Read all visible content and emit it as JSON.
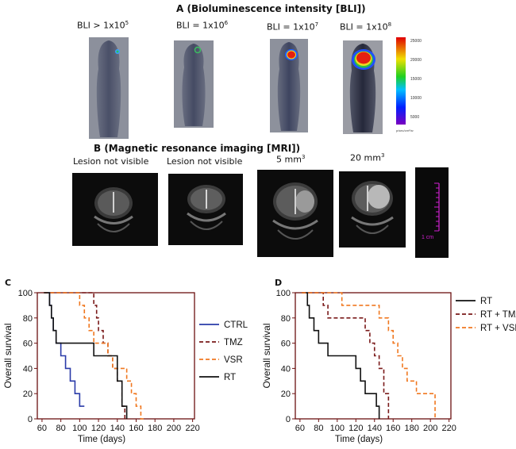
{
  "panel_a": {
    "title": "A (Bioluminescence intensity [BLI])",
    "labels": [
      {
        "prefix": "BLI > 1x10",
        "exp": "5"
      },
      {
        "prefix": "BLI = 1x10",
        "exp": "6"
      },
      {
        "prefix": "BLI = 1x10",
        "exp": "7"
      },
      {
        "prefix": "BLI = 1x10",
        "exp": "8"
      }
    ],
    "colorbar_ticks": [
      "25000",
      "20000",
      "15000",
      "10000",
      "5000"
    ],
    "colorbar_unit": "p/sec/cm²/sr"
  },
  "panel_b": {
    "title": "B (Magnetic resonance imaging [MRI])",
    "labels": [
      {
        "text": "Lesion not visible",
        "exp": ""
      },
      {
        "text": "Lesion not visible",
        "exp": ""
      },
      {
        "text": "5 mm",
        "exp": "3"
      },
      {
        "text": "20 mm",
        "exp": "3"
      }
    ],
    "scale_label": "1 cm"
  },
  "chart_data": [
    {
      "panel": "C",
      "type": "line",
      "ylabel": "Overall survival",
      "xlabel": "Time  (days)",
      "xticks": [
        "60",
        "80",
        "100",
        "120",
        "140",
        "160",
        "180",
        "200",
        "220"
      ],
      "yticks": [
        "100",
        "80",
        "60",
        "40",
        "20",
        "0"
      ],
      "xlim": [
        55,
        222
      ],
      "ylim": [
        0,
        100
      ],
      "series": [
        {
          "name": "CTRL",
          "color": "#2a3ba8",
          "dash": "solid",
          "x": [
            62,
            68,
            70,
            72,
            75,
            80,
            85,
            90,
            95,
            100,
            105
          ],
          "y": [
            100,
            90,
            80,
            70,
            60,
            50,
            40,
            30,
            20,
            10,
            10
          ]
        },
        {
          "name": "TMZ",
          "color": "#7a1a1a",
          "dash": "dash",
          "x": [
            62,
            110,
            115,
            118,
            120,
            125,
            130,
            135,
            140,
            145,
            148
          ],
          "y": [
            100,
            100,
            90,
            80,
            70,
            60,
            50,
            40,
            30,
            10,
            0
          ]
        },
        {
          "name": "VSR",
          "color": "#f07820",
          "dash": "dash",
          "x": [
            62,
            95,
            100,
            105,
            110,
            115,
            125,
            130,
            135,
            140,
            150,
            155,
            160,
            165,
            168
          ],
          "y": [
            100,
            100,
            90,
            80,
            70,
            60,
            60,
            50,
            40,
            40,
            30,
            20,
            10,
            0,
            0
          ]
        },
        {
          "name": "RT",
          "color": "#111111",
          "dash": "solid",
          "x": [
            62,
            68,
            70,
            72,
            75,
            95,
            115,
            130,
            140,
            145,
            150
          ],
          "y": [
            100,
            90,
            80,
            70,
            60,
            60,
            50,
            50,
            30,
            10,
            0
          ]
        }
      ]
    },
    {
      "panel": "D",
      "type": "line",
      "ylabel": "Overall survival",
      "xlabel": "Time  (days)",
      "xticks": [
        "60",
        "80",
        "100",
        "120",
        "140",
        "160",
        "180",
        "200",
        "220"
      ],
      "yticks": [
        "100",
        "80",
        "60",
        "40",
        "20",
        "0"
      ],
      "xlim": [
        55,
        222
      ],
      "ylim": [
        0,
        100
      ],
      "series": [
        {
          "name": "RT",
          "color": "#111111",
          "dash": "solid",
          "x": [
            62,
            68,
            70,
            75,
            80,
            90,
            110,
            120,
            125,
            130,
            135,
            142,
            145
          ],
          "y": [
            100,
            90,
            80,
            70,
            60,
            50,
            50,
            40,
            30,
            20,
            20,
            10,
            0
          ]
        },
        {
          "name": "RT + TMZ",
          "color": "#7a1a1a",
          "dash": "dash",
          "x": [
            62,
            75,
            85,
            90,
            125,
            130,
            135,
            140,
            145,
            150,
            155
          ],
          "y": [
            100,
            100,
            90,
            80,
            80,
            70,
            60,
            50,
            40,
            20,
            0
          ]
        },
        {
          "name": "RT + VSR",
          "color": "#f07820",
          "dash": "dash",
          "x": [
            62,
            80,
            105,
            140,
            145,
            155,
            160,
            165,
            170,
            175,
            185,
            195,
            205
          ],
          "y": [
            100,
            100,
            90,
            90,
            80,
            70,
            60,
            50,
            40,
            30,
            20,
            20,
            0
          ]
        }
      ]
    }
  ]
}
